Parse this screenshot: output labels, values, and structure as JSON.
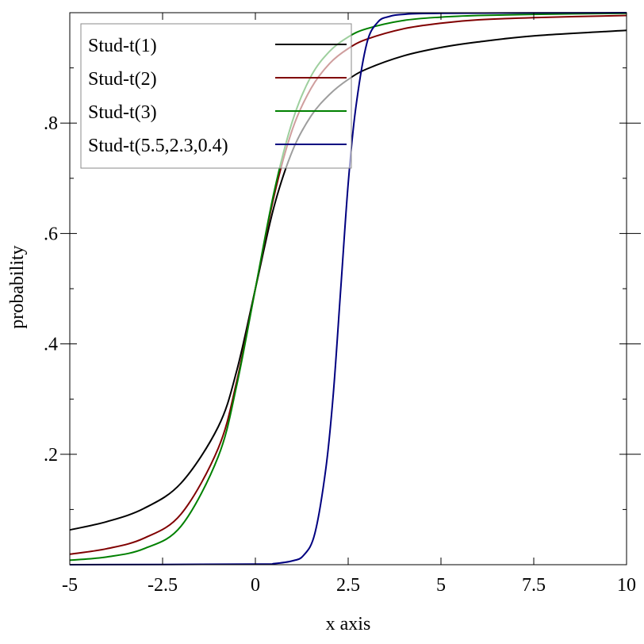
{
  "chart_data": {
    "type": "line",
    "xlabel": "x axis",
    "ylabel": "probability",
    "xlim": [
      -5,
      10
    ],
    "ylim": [
      0,
      1
    ],
    "x_ticks": [
      {
        "value": -5,
        "label": "-5"
      },
      {
        "value": -2.5,
        "label": "-2.5"
      },
      {
        "value": 0,
        "label": "0"
      },
      {
        "value": 2.5,
        "label": "2.5"
      },
      {
        "value": 5,
        "label": "5"
      },
      {
        "value": 7.5,
        "label": "7.5"
      },
      {
        "value": 10,
        "label": "10"
      }
    ],
    "y_ticks": [
      {
        "value": 0.2,
        "label": ".2"
      },
      {
        "value": 0.4,
        "label": ".4"
      },
      {
        "value": 0.6,
        "label": ".6"
      },
      {
        "value": 0.8,
        "label": ".8"
      }
    ],
    "y_minor_ticks": [
      0.1,
      0.3,
      0.5,
      0.7,
      0.9
    ],
    "legend_position": "top-left",
    "grid": false,
    "series": [
      {
        "name": "Stud-t(1)",
        "color": "#000000",
        "x": [
          -5,
          -4,
          -3,
          -2,
          -1,
          -0.5,
          0,
          0.5,
          1,
          1.5,
          2,
          2.5,
          3,
          4,
          5,
          6,
          7.5,
          10
        ],
        "y": [
          0.063,
          0.078,
          0.102,
          0.148,
          0.25,
          0.352,
          0.5,
          0.648,
          0.75,
          0.813,
          0.852,
          0.879,
          0.898,
          0.922,
          0.937,
          0.947,
          0.958,
          0.968
        ]
      },
      {
        "name": "Stud-t(2)",
        "color": "#800000",
        "x": [
          -5,
          -4,
          -3,
          -2,
          -1,
          -0.5,
          0,
          0.5,
          1,
          1.5,
          2,
          2.5,
          3,
          4,
          5,
          6,
          7.5,
          10
        ],
        "y": [
          0.019,
          0.029,
          0.048,
          0.092,
          0.211,
          0.333,
          0.5,
          0.667,
          0.789,
          0.863,
          0.908,
          0.935,
          0.952,
          0.971,
          0.981,
          0.987,
          0.991,
          0.995
        ]
      },
      {
        "name": "Stud-t(3)",
        "color": "#008000",
        "x": [
          -5,
          -4,
          -3,
          -2,
          -1,
          -0.5,
          0,
          0.5,
          1,
          1.5,
          2,
          2.5,
          3,
          4,
          5,
          6,
          7.5,
          10
        ],
        "y": [
          0.008,
          0.014,
          0.029,
          0.07,
          0.196,
          0.326,
          0.5,
          0.674,
          0.804,
          0.885,
          0.93,
          0.956,
          0.971,
          0.986,
          0.992,
          0.995,
          0.997,
          0.999
        ]
      },
      {
        "name": "Stud-t(5.5,2.3,0.4)",
        "color": "#000080",
        "x": [
          -5,
          0,
          0.5,
          1,
          1.3,
          1.6,
          1.9,
          2.1,
          2.3,
          2.5,
          2.7,
          3,
          3.3,
          3.6,
          4,
          5,
          10
        ],
        "y": [
          0,
          0.001,
          0.002,
          0.007,
          0.017,
          0.056,
          0.175,
          0.31,
          0.5,
          0.69,
          0.825,
          0.944,
          0.983,
          0.993,
          0.997,
          0.999,
          1
        ]
      }
    ]
  }
}
